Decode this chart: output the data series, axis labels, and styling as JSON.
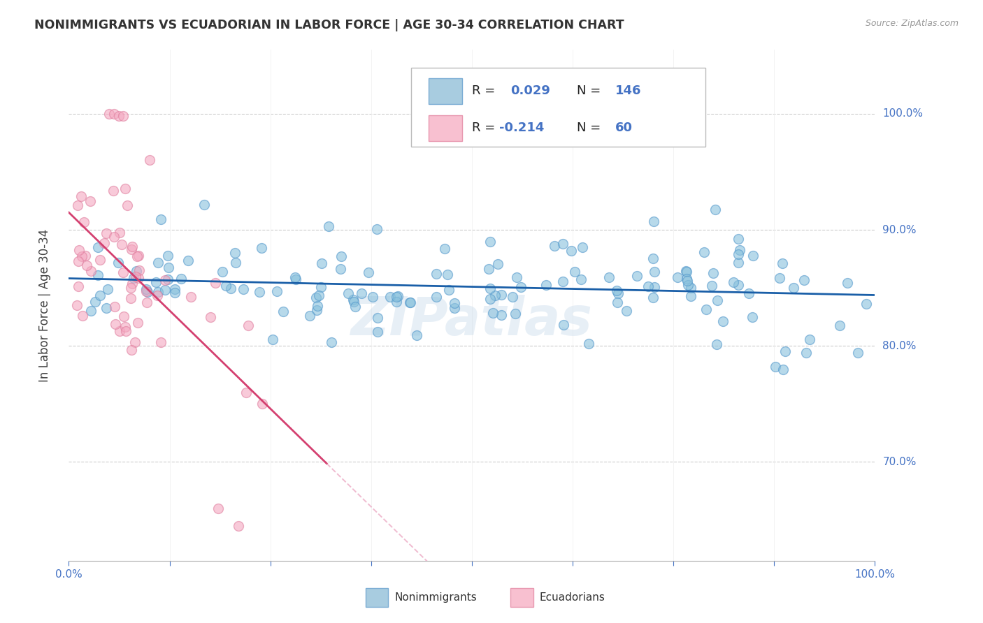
{
  "title": "NONIMMIGRANTS VS ECUADORIAN IN LABOR FORCE | AGE 30-34 CORRELATION CHART",
  "source": "Source: ZipAtlas.com",
  "ylabel": "In Labor Force | Age 30-34",
  "xlim": [
    0.0,
    1.0
  ],
  "ylim": [
    0.615,
    1.055
  ],
  "watermark": "ZIPatlas",
  "blue_scatter_color": "#88c0dc",
  "blue_edge_color": "#5599cc",
  "pink_scatter_color": "#f4a8c0",
  "pink_edge_color": "#e080a0",
  "blue_line_color": "#1a5fa8",
  "pink_line_color": "#d44070",
  "pink_dash_color": "#e898b8",
  "grid_color": "#cccccc",
  "background_color": "#ffffff",
  "R_blue": 0.029,
  "N_blue": 146,
  "R_pink": -0.214,
  "N_pink": 60,
  "title_fontsize": 12.5,
  "axis_label_fontsize": 11,
  "ylabel_fontsize": 12,
  "legend_fontsize": 13,
  "watermark_fontsize": 55,
  "scatter_size": 100,
  "scatter_alpha": 0.6
}
